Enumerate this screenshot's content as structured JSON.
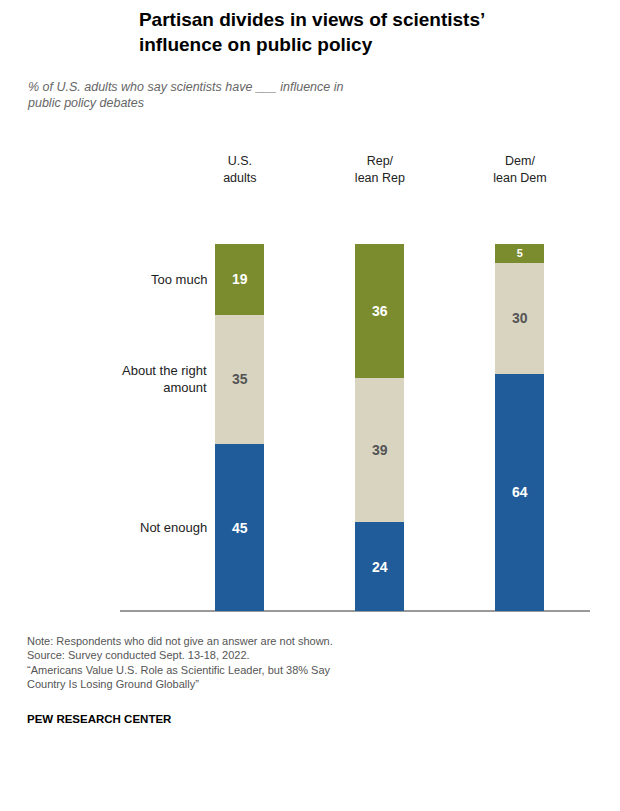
{
  "chart_data": {
    "type": "bar",
    "title": "Partisan divides in views of scientists’\ninfluence on public policy",
    "subtitle": "% of U.S. adults who say scientists have ___ influence in\npublic policy debates",
    "categories": [
      "U.S.\nadults",
      "Rep/\nlean Rep",
      "Dem/\nlean Dem"
    ],
    "series": [
      {
        "name": "Not enough",
        "color": "#1F5C99",
        "label_color": "#FFFFFF",
        "values": [
          45,
          24,
          64
        ]
      },
      {
        "name": "About the right\namount",
        "color": "#D8D4C0",
        "label_color": "#555555",
        "values": [
          35,
          39,
          30
        ]
      },
      {
        "name": "Too much",
        "color": "#7A8C2E",
        "label_color": "#FFFFFF",
        "values": [
          19,
          36,
          5
        ]
      }
    ],
    "stacked": true,
    "data_labels": true,
    "ylim": [
      0,
      115
    ],
    "grid": false,
    "tick_labels": "x",
    "notes": [
      "Note: Respondents who did not give an answer are not shown.",
      "Source: Survey conducted Sept. 13-18, 2022.",
      "“Americans Value U.S. Role as Scientific Leader, but 38% Say",
      "Country Is Losing Ground Globally”"
    ],
    "credit": "PEW RESEARCH CENTER",
    "background_color": "#FFFFFF"
  }
}
